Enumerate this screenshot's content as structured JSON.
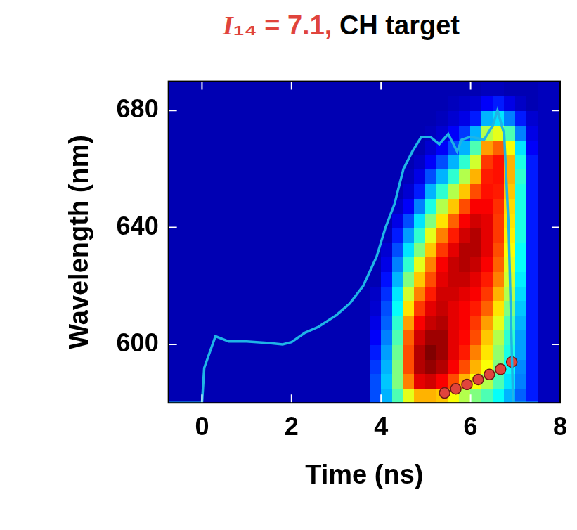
{
  "chart_data": {
    "type": "heatmap",
    "title": "I₁₄ = 7.1, CH target",
    "x_label": "Time (ns)",
    "y_label": "Wavelength (nm)",
    "xlim": [
      -0.75,
      8
    ],
    "ylim": [
      580,
      690
    ],
    "xticks": [
      0,
      2,
      4,
      6,
      8
    ],
    "yticks": [
      600,
      640,
      680
    ],
    "grid": false,
    "heatmap": {
      "x_edges": [
        -0.75,
        3.75,
        4,
        4.25,
        4.5,
        4.75,
        5,
        5.25,
        5.5,
        5.75,
        6,
        6.25,
        6.5,
        6.75,
        7,
        7.25,
        7.5,
        8
      ],
      "y_edges": [
        580,
        585,
        590,
        595,
        600,
        605,
        610,
        615,
        620,
        625,
        630,
        635,
        640,
        645,
        650,
        655,
        660,
        665,
        670,
        675,
        680,
        685,
        690
      ],
      "zlim": [
        0,
        1
      ],
      "z": [
        [
          0.05,
          0.2,
          0.3,
          0.45,
          0.6,
          0.7,
          0.7,
          0.68,
          0.62,
          0.55,
          0.5,
          0.45,
          0.38,
          0.3,
          0.22,
          0.15,
          0.06
        ],
        [
          0.05,
          0.2,
          0.32,
          0.5,
          0.75,
          0.9,
          0.92,
          0.88,
          0.8,
          0.7,
          0.62,
          0.55,
          0.45,
          0.35,
          0.25,
          0.15,
          0.06
        ],
        [
          0.05,
          0.18,
          0.3,
          0.5,
          0.8,
          0.95,
          0.98,
          0.95,
          0.88,
          0.8,
          0.7,
          0.62,
          0.5,
          0.38,
          0.26,
          0.15,
          0.06
        ],
        [
          0.05,
          0.15,
          0.28,
          0.48,
          0.8,
          0.95,
          1.0,
          0.97,
          0.9,
          0.85,
          0.75,
          0.65,
          0.52,
          0.4,
          0.28,
          0.15,
          0.06
        ],
        [
          0.05,
          0.12,
          0.25,
          0.45,
          0.78,
          0.92,
          0.97,
          0.97,
          0.9,
          0.87,
          0.8,
          0.68,
          0.55,
          0.42,
          0.28,
          0.15,
          0.06
        ],
        [
          0.05,
          0.1,
          0.22,
          0.42,
          0.72,
          0.88,
          0.93,
          0.95,
          0.9,
          0.88,
          0.82,
          0.72,
          0.6,
          0.45,
          0.3,
          0.15,
          0.06
        ],
        [
          0.05,
          0.08,
          0.2,
          0.38,
          0.65,
          0.82,
          0.9,
          0.93,
          0.9,
          0.88,
          0.85,
          0.78,
          0.65,
          0.5,
          0.32,
          0.15,
          0.06
        ],
        [
          0.05,
          0.07,
          0.17,
          0.35,
          0.58,
          0.75,
          0.85,
          0.92,
          0.92,
          0.9,
          0.88,
          0.82,
          0.7,
          0.55,
          0.34,
          0.15,
          0.06
        ],
        [
          0.05,
          0.05,
          0.14,
          0.3,
          0.5,
          0.68,
          0.8,
          0.9,
          0.93,
          0.93,
          0.9,
          0.85,
          0.75,
          0.58,
          0.36,
          0.15,
          0.06
        ],
        [
          0.05,
          0.05,
          0.1,
          0.25,
          0.42,
          0.6,
          0.75,
          0.88,
          0.93,
          0.95,
          0.93,
          0.88,
          0.78,
          0.6,
          0.38,
          0.15,
          0.06
        ],
        [
          0.05,
          0.05,
          0.08,
          0.2,
          0.35,
          0.5,
          0.68,
          0.82,
          0.9,
          0.95,
          0.95,
          0.9,
          0.8,
          0.62,
          0.38,
          0.15,
          0.06
        ],
        [
          0.05,
          0.05,
          0.06,
          0.15,
          0.28,
          0.42,
          0.6,
          0.75,
          0.85,
          0.92,
          0.95,
          0.9,
          0.82,
          0.64,
          0.4,
          0.15,
          0.06
        ],
        [
          0.05,
          0.05,
          0.05,
          0.1,
          0.2,
          0.35,
          0.5,
          0.65,
          0.78,
          0.88,
          0.92,
          0.9,
          0.82,
          0.65,
          0.4,
          0.15,
          0.06
        ],
        [
          0.05,
          0.05,
          0.05,
          0.07,
          0.12,
          0.25,
          0.4,
          0.55,
          0.68,
          0.8,
          0.88,
          0.88,
          0.83,
          0.66,
          0.4,
          0.15,
          0.06
        ],
        [
          0.05,
          0.05,
          0.05,
          0.05,
          0.08,
          0.15,
          0.3,
          0.42,
          0.55,
          0.68,
          0.8,
          0.86,
          0.85,
          0.68,
          0.4,
          0.15,
          0.06
        ],
        [
          0.05,
          0.05,
          0.05,
          0.05,
          0.06,
          0.1,
          0.2,
          0.3,
          0.42,
          0.55,
          0.7,
          0.85,
          0.86,
          0.7,
          0.42,
          0.15,
          0.06
        ],
        [
          0.05,
          0.05,
          0.05,
          0.05,
          0.05,
          0.07,
          0.12,
          0.2,
          0.3,
          0.42,
          0.58,
          0.82,
          0.86,
          0.7,
          0.4,
          0.15,
          0.06
        ],
        [
          0.05,
          0.05,
          0.05,
          0.05,
          0.05,
          0.05,
          0.08,
          0.12,
          0.2,
          0.3,
          0.45,
          0.72,
          0.78,
          0.62,
          0.35,
          0.12,
          0.06
        ],
        [
          0.05,
          0.05,
          0.05,
          0.05,
          0.05,
          0.05,
          0.06,
          0.08,
          0.12,
          0.18,
          0.3,
          0.55,
          0.6,
          0.45,
          0.25,
          0.1,
          0.06
        ],
        [
          0.05,
          0.05,
          0.05,
          0.05,
          0.05,
          0.05,
          0.05,
          0.06,
          0.08,
          0.1,
          0.15,
          0.3,
          0.35,
          0.25,
          0.15,
          0.08,
          0.06
        ],
        [
          0.05,
          0.05,
          0.05,
          0.05,
          0.05,
          0.05,
          0.05,
          0.05,
          0.06,
          0.07,
          0.08,
          0.12,
          0.15,
          0.1,
          0.07,
          0.05,
          0.06
        ],
        [
          0.05,
          0.05,
          0.05,
          0.05,
          0.05,
          0.05,
          0.05,
          0.05,
          0.05,
          0.05,
          0.05,
          0.06,
          0.06,
          0.05,
          0.05,
          0.05,
          0.06
        ]
      ]
    },
    "series": [
      {
        "type": "line",
        "color": "#1fb4e6",
        "line_style": "solid",
        "x": [
          -0.75,
          0,
          0.05,
          0.3,
          0.6,
          1,
          1.5,
          1.8,
          2,
          2.3,
          2.6,
          3,
          3.3,
          3.6,
          3.9,
          4.1,
          4.3,
          4.5,
          4.7,
          4.9,
          5.1,
          5.3,
          5.5,
          5.7,
          5.8,
          6.0,
          6.3,
          6.5,
          6.6,
          6.75,
          6.85,
          6.95,
          7.5
        ],
        "values": [
          580,
          580,
          592,
          602.8,
          601,
          601,
          600.5,
          600,
          600.8,
          604,
          606,
          610,
          614,
          620,
          630,
          640,
          648,
          660,
          666,
          671,
          671,
          668.5,
          672,
          666,
          670,
          671,
          670,
          675,
          680,
          672,
          640,
          580,
          580
        ]
      },
      {
        "type": "scatter",
        "color": "#e0443c",
        "marker": "circle",
        "x": [
          5.42,
          5.67,
          5.92,
          6.17,
          6.42,
          6.67,
          6.92
        ],
        "values": [
          583.4,
          584.8,
          586.3,
          588,
          589.7,
          591.5,
          594
        ]
      }
    ]
  }
}
